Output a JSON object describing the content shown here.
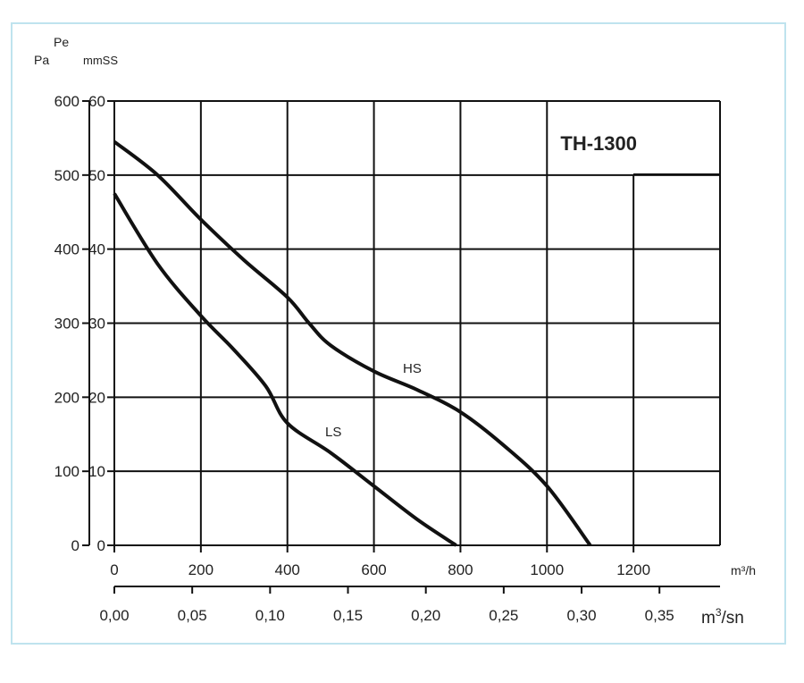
{
  "chart_data": {
    "type": "line",
    "title": "TH-1300",
    "ylabel_pa": "Pa",
    "ylabel_pe": "Pe",
    "ylabel_mmss": "mmSS",
    "xlabel": "m³/h",
    "xlabel2_base": "m",
    "xlabel2_sup": "3",
    "xlabel2_rest": "/sn",
    "xlim": [
      0,
      1400
    ],
    "ylim": [
      0,
      60
    ],
    "x_ticks": [
      "0",
      "200",
      "400",
      "600",
      "800",
      "1000",
      "1200"
    ],
    "x_tick_values": [
      0,
      200,
      400,
      600,
      800,
      1000,
      1200
    ],
    "x2_ticks": [
      "0,00",
      "0,05",
      "0,10",
      "0,15",
      "0,20",
      "0,25",
      "0,30",
      "0,35"
    ],
    "x2_tick_values": [
      0,
      0.05,
      0.1,
      0.15,
      0.2,
      0.25,
      0.3,
      0.35
    ],
    "y_mmss_ticks": [
      "0",
      "10",
      "20",
      "30",
      "40",
      "50",
      "60"
    ],
    "y_pa_ticks": [
      "0",
      "100",
      "200",
      "300",
      "400",
      "500",
      "600"
    ],
    "y_tick_values": [
      0,
      10,
      20,
      30,
      40,
      50,
      60
    ],
    "grid": true,
    "series": [
      {
        "name": "HS",
        "x": [
          0,
          100,
          200,
          300,
          400,
          450,
          500,
          600,
          700,
          800,
          900,
          1000,
          1100
        ],
        "y": [
          54.5,
          50,
          44,
          38.5,
          33.5,
          30,
          27,
          23.5,
          21,
          18,
          13.5,
          8,
          0
        ]
      },
      {
        "name": "LS",
        "x": [
          0,
          100,
          200,
          275,
          350,
          400,
          500,
          600,
          700,
          790
        ],
        "y": [
          47.5,
          38,
          31,
          26.5,
          21.5,
          16.5,
          12.5,
          8,
          3.5,
          0
        ]
      }
    ]
  }
}
